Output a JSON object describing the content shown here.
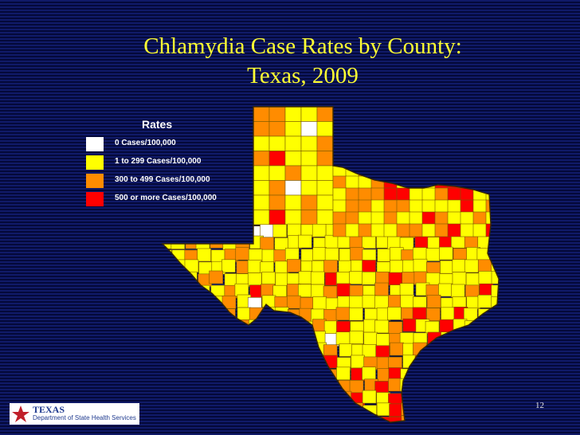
{
  "title": {
    "line1": "Chlamydia Case Rates by County:",
    "line2": "Texas, 2009"
  },
  "legend": {
    "title": "Rates",
    "items": [
      {
        "label": "0 Cases/100,000",
        "color": "#ffffff"
      },
      {
        "label": "1 to 299 Cases/100,000",
        "color": "#ffff00"
      },
      {
        "label": "300 to 499 Cases/100,000",
        "color": "#ff8c00"
      },
      {
        "label": "500 or more Cases/100,000",
        "color": "#ff0000"
      }
    ]
  },
  "colors": {
    "background": "#0a1457",
    "title": "#ffff33",
    "county_border": "#7a5a00"
  },
  "page_number": "12",
  "footer": {
    "state": "TEXAS",
    "department": "Department of State Health Services"
  }
}
